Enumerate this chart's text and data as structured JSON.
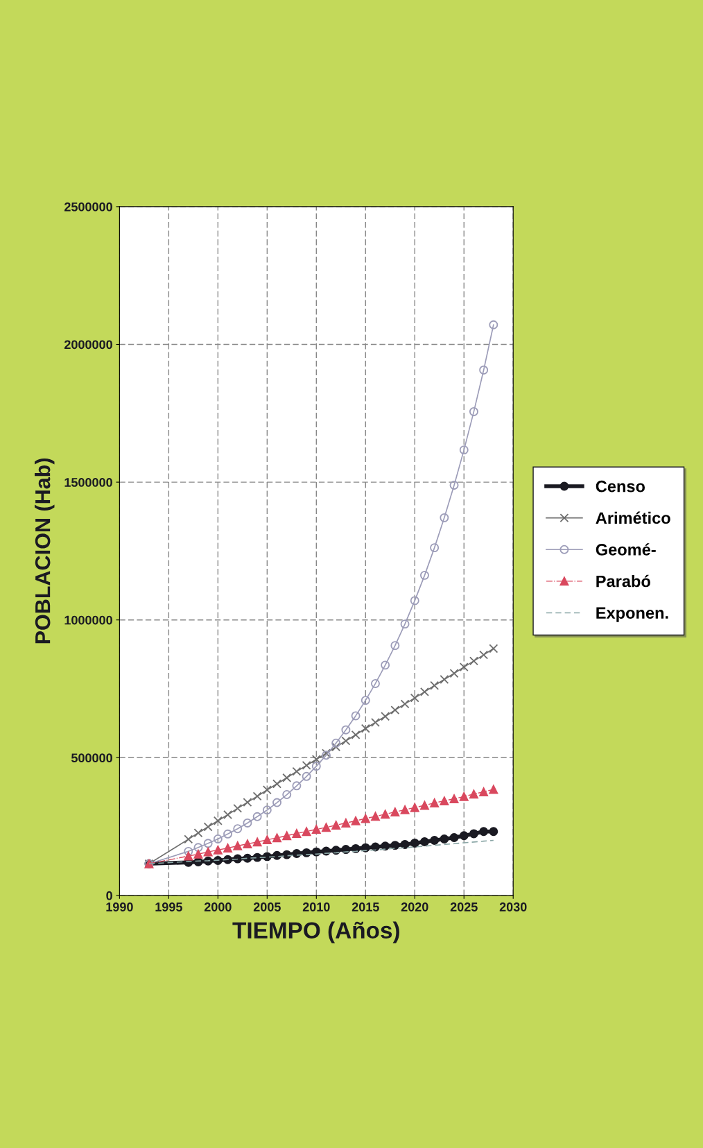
{
  "chart_data": {
    "type": "line",
    "xlabel": "TIEMPO (Años)",
    "ylabel": "POBLACION (Hab)",
    "x": [
      1993,
      1997,
      1998,
      1999,
      2000,
      2001,
      2002,
      2003,
      2004,
      2005,
      2006,
      2007,
      2008,
      2009,
      2010,
      2011,
      2012,
      2013,
      2014,
      2015,
      2016,
      2017,
      2018,
      2019,
      2020,
      2021,
      2022,
      2023,
      2024,
      2025,
      2026,
      2027,
      2028
    ],
    "series": [
      {
        "name": "Censo",
        "color": "#1a1a22",
        "marker": "circle",
        "line_style": "solid",
        "values": [
          115000,
          120000,
          122000,
          125000,
          127000,
          130000,
          133000,
          135000,
          138000,
          141000,
          145000,
          148000,
          152000,
          155000,
          158000,
          161000,
          164000,
          167000,
          170000,
          173000,
          176000,
          179000,
          182000,
          185000,
          190000,
          195000,
          200000,
          205000,
          210000,
          217000,
          224000,
          232000,
          232000
        ]
      },
      {
        "name": "Arimético",
        "color": "#6e6e6e",
        "marker": "cross",
        "line_style": "solid",
        "values": [
          115000,
          204000,
          227000,
          249000,
          271000,
          293000,
          316000,
          338000,
          360000,
          383000,
          405000,
          427000,
          450000,
          472000,
          494000,
          516000,
          539000,
          561000,
          583000,
          606000,
          628000,
          650000,
          673000,
          695000,
          717000,
          739000,
          762000,
          784000,
          806000,
          829000,
          851000,
          873000,
          896000
        ]
      },
      {
        "name": "Geomé-",
        "color": "#9c9cb8",
        "marker": "circle_open",
        "line_style": "solid",
        "values": [
          115000,
          160000,
          174000,
          189000,
          205000,
          223000,
          242000,
          263000,
          286000,
          310000,
          337000,
          366000,
          398000,
          432000,
          469000,
          509000,
          553000,
          601000,
          652000,
          708000,
          769000,
          836000,
          907000,
          985000,
          1070000,
          1162000,
          1262000,
          1371000,
          1489000,
          1617000,
          1756000,
          1907000,
          2071000
        ]
      },
      {
        "name": "Parabó",
        "color": "#d9485e",
        "marker": "triangle",
        "line_style": "dashdot",
        "values": [
          115000,
          143000,
          150000,
          158000,
          165000,
          172000,
          180000,
          187000,
          194000,
          202000,
          209000,
          217000,
          225000,
          232000,
          240000,
          247000,
          255000,
          263000,
          271000,
          279000,
          287000,
          295000,
          303000,
          311000,
          319000,
          327000,
          336000,
          343000,
          351000,
          359000,
          368000,
          376000,
          385000
        ]
      },
      {
        "name": "Exponen.",
        "color": "#8aa6a6",
        "marker": "none",
        "line_style": "dashed",
        "values": [
          115000,
          123000,
          125000,
          126000,
          128000,
          130000,
          132000,
          135000,
          137000,
          139000,
          141000,
          144000,
          146000,
          148000,
          150000,
          153000,
          155000,
          158000,
          160000,
          163000,
          165000,
          168000,
          171000,
          173000,
          176000,
          179000,
          182000,
          185000,
          188000,
          191000,
          194000,
          197000,
          200000
        ]
      }
    ],
    "xlim": [
      1990,
      2030
    ],
    "xticks": [
      1990,
      1995,
      2000,
      2005,
      2010,
      2015,
      2020,
      2025,
      2030
    ],
    "ylim": [
      0,
      2500000
    ],
    "yticks": [
      0,
      500000,
      1000000,
      1500000,
      2000000,
      2500000
    ],
    "grid": true,
    "legend": "right"
  }
}
